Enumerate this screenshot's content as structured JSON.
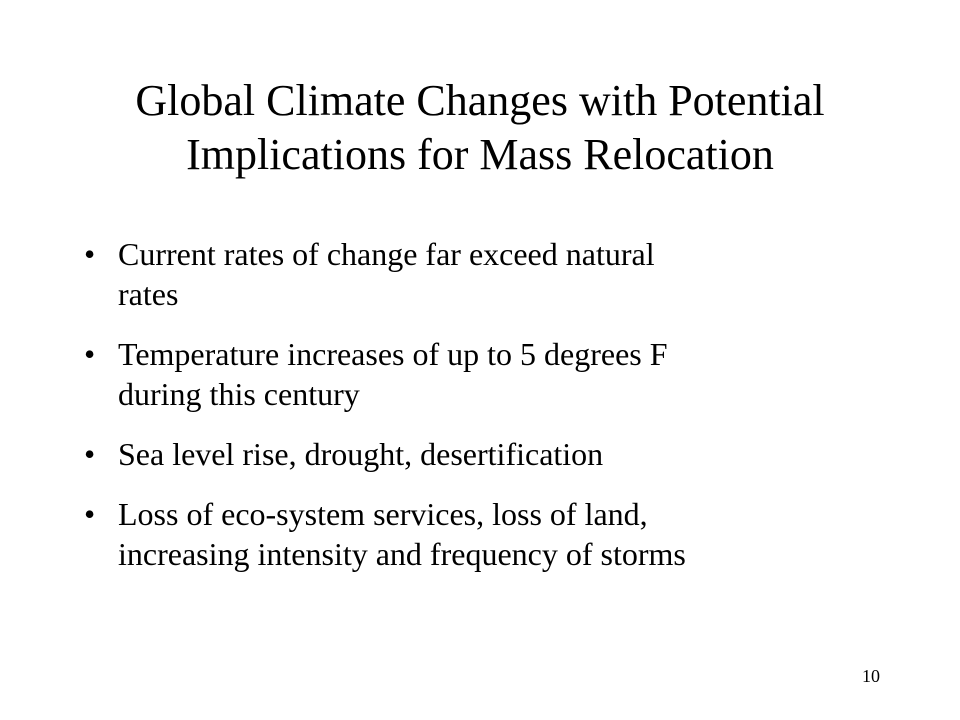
{
  "slide": {
    "title_lines": [
      "Global Climate Changes with Potential",
      "Implications for Mass Relocation"
    ],
    "bullet_symbol": "•",
    "bullets": [
      {
        "lines": [
          "Current rates of change far exceed natural",
          "rates"
        ]
      },
      {
        "lines": [
          "Temperature increases of up to 5 degrees F",
          "during this century"
        ]
      },
      {
        "lines": [
          "Sea level rise, drought, desertification"
        ]
      },
      {
        "lines": [
          "Loss of eco-system services, loss of land,",
          "increasing intensity and frequency of storms"
        ]
      }
    ],
    "page_number": "10"
  }
}
